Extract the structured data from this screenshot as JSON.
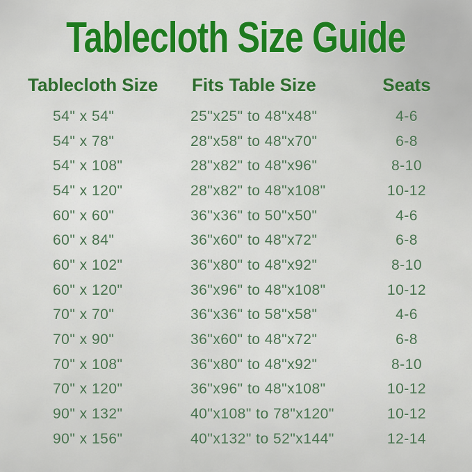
{
  "title": "Tablecloth Size Guide",
  "colors": {
    "title_green": "#1e7a1f",
    "header_green": "#2d6b2d",
    "body_green": "#46704c",
    "background_silver": "#d5d6d2"
  },
  "chart_data": {
    "type": "table",
    "title": "Tablecloth Size Guide",
    "columns": [
      "Tablecloth Size",
      "Fits Table Size",
      "Seats"
    ],
    "rows": [
      [
        "54\" x 54\"",
        "25\"x25\" to 48\"x48\"",
        "4-6"
      ],
      [
        "54\" x 78\"",
        "28\"x58\" to 48\"x70\"",
        "6-8"
      ],
      [
        "54\" x 108\"",
        "28\"x82\" to 48\"x96\"",
        "8-10"
      ],
      [
        "54\" x 120\"",
        "28\"x82\" to 48\"x108\"",
        "10-12"
      ],
      [
        "60\" x 60\"",
        "36\"x36\" to 50\"x50\"",
        "4-6"
      ],
      [
        "60\" x 84\"",
        "36\"x60\" to 48\"x72\"",
        "6-8"
      ],
      [
        "60\" x 102\"",
        "36\"x80\" to 48\"x92\"",
        "8-10"
      ],
      [
        "60\" x 120\"",
        "36\"x96\" to 48\"x108\"",
        "10-12"
      ],
      [
        "70\" x 70\"",
        "36\"x36\" to 58\"x58\"",
        "4-6"
      ],
      [
        "70\" x 90\"",
        "36\"x60\" to 48\"x72\"",
        "6-8"
      ],
      [
        "70\" x 108\"",
        "36\"x80\" to 48\"x92\"",
        "8-10"
      ],
      [
        "70\" x 120\"",
        "36\"x96\" to 48\"x108\"",
        "10-12"
      ],
      [
        "90\" x 132\"",
        "40\"x108\" to 78\"x120\"",
        "10-12"
      ],
      [
        "90\" x 156\"",
        "40\"x132\" to 52\"x144\"",
        "12-14"
      ]
    ]
  }
}
